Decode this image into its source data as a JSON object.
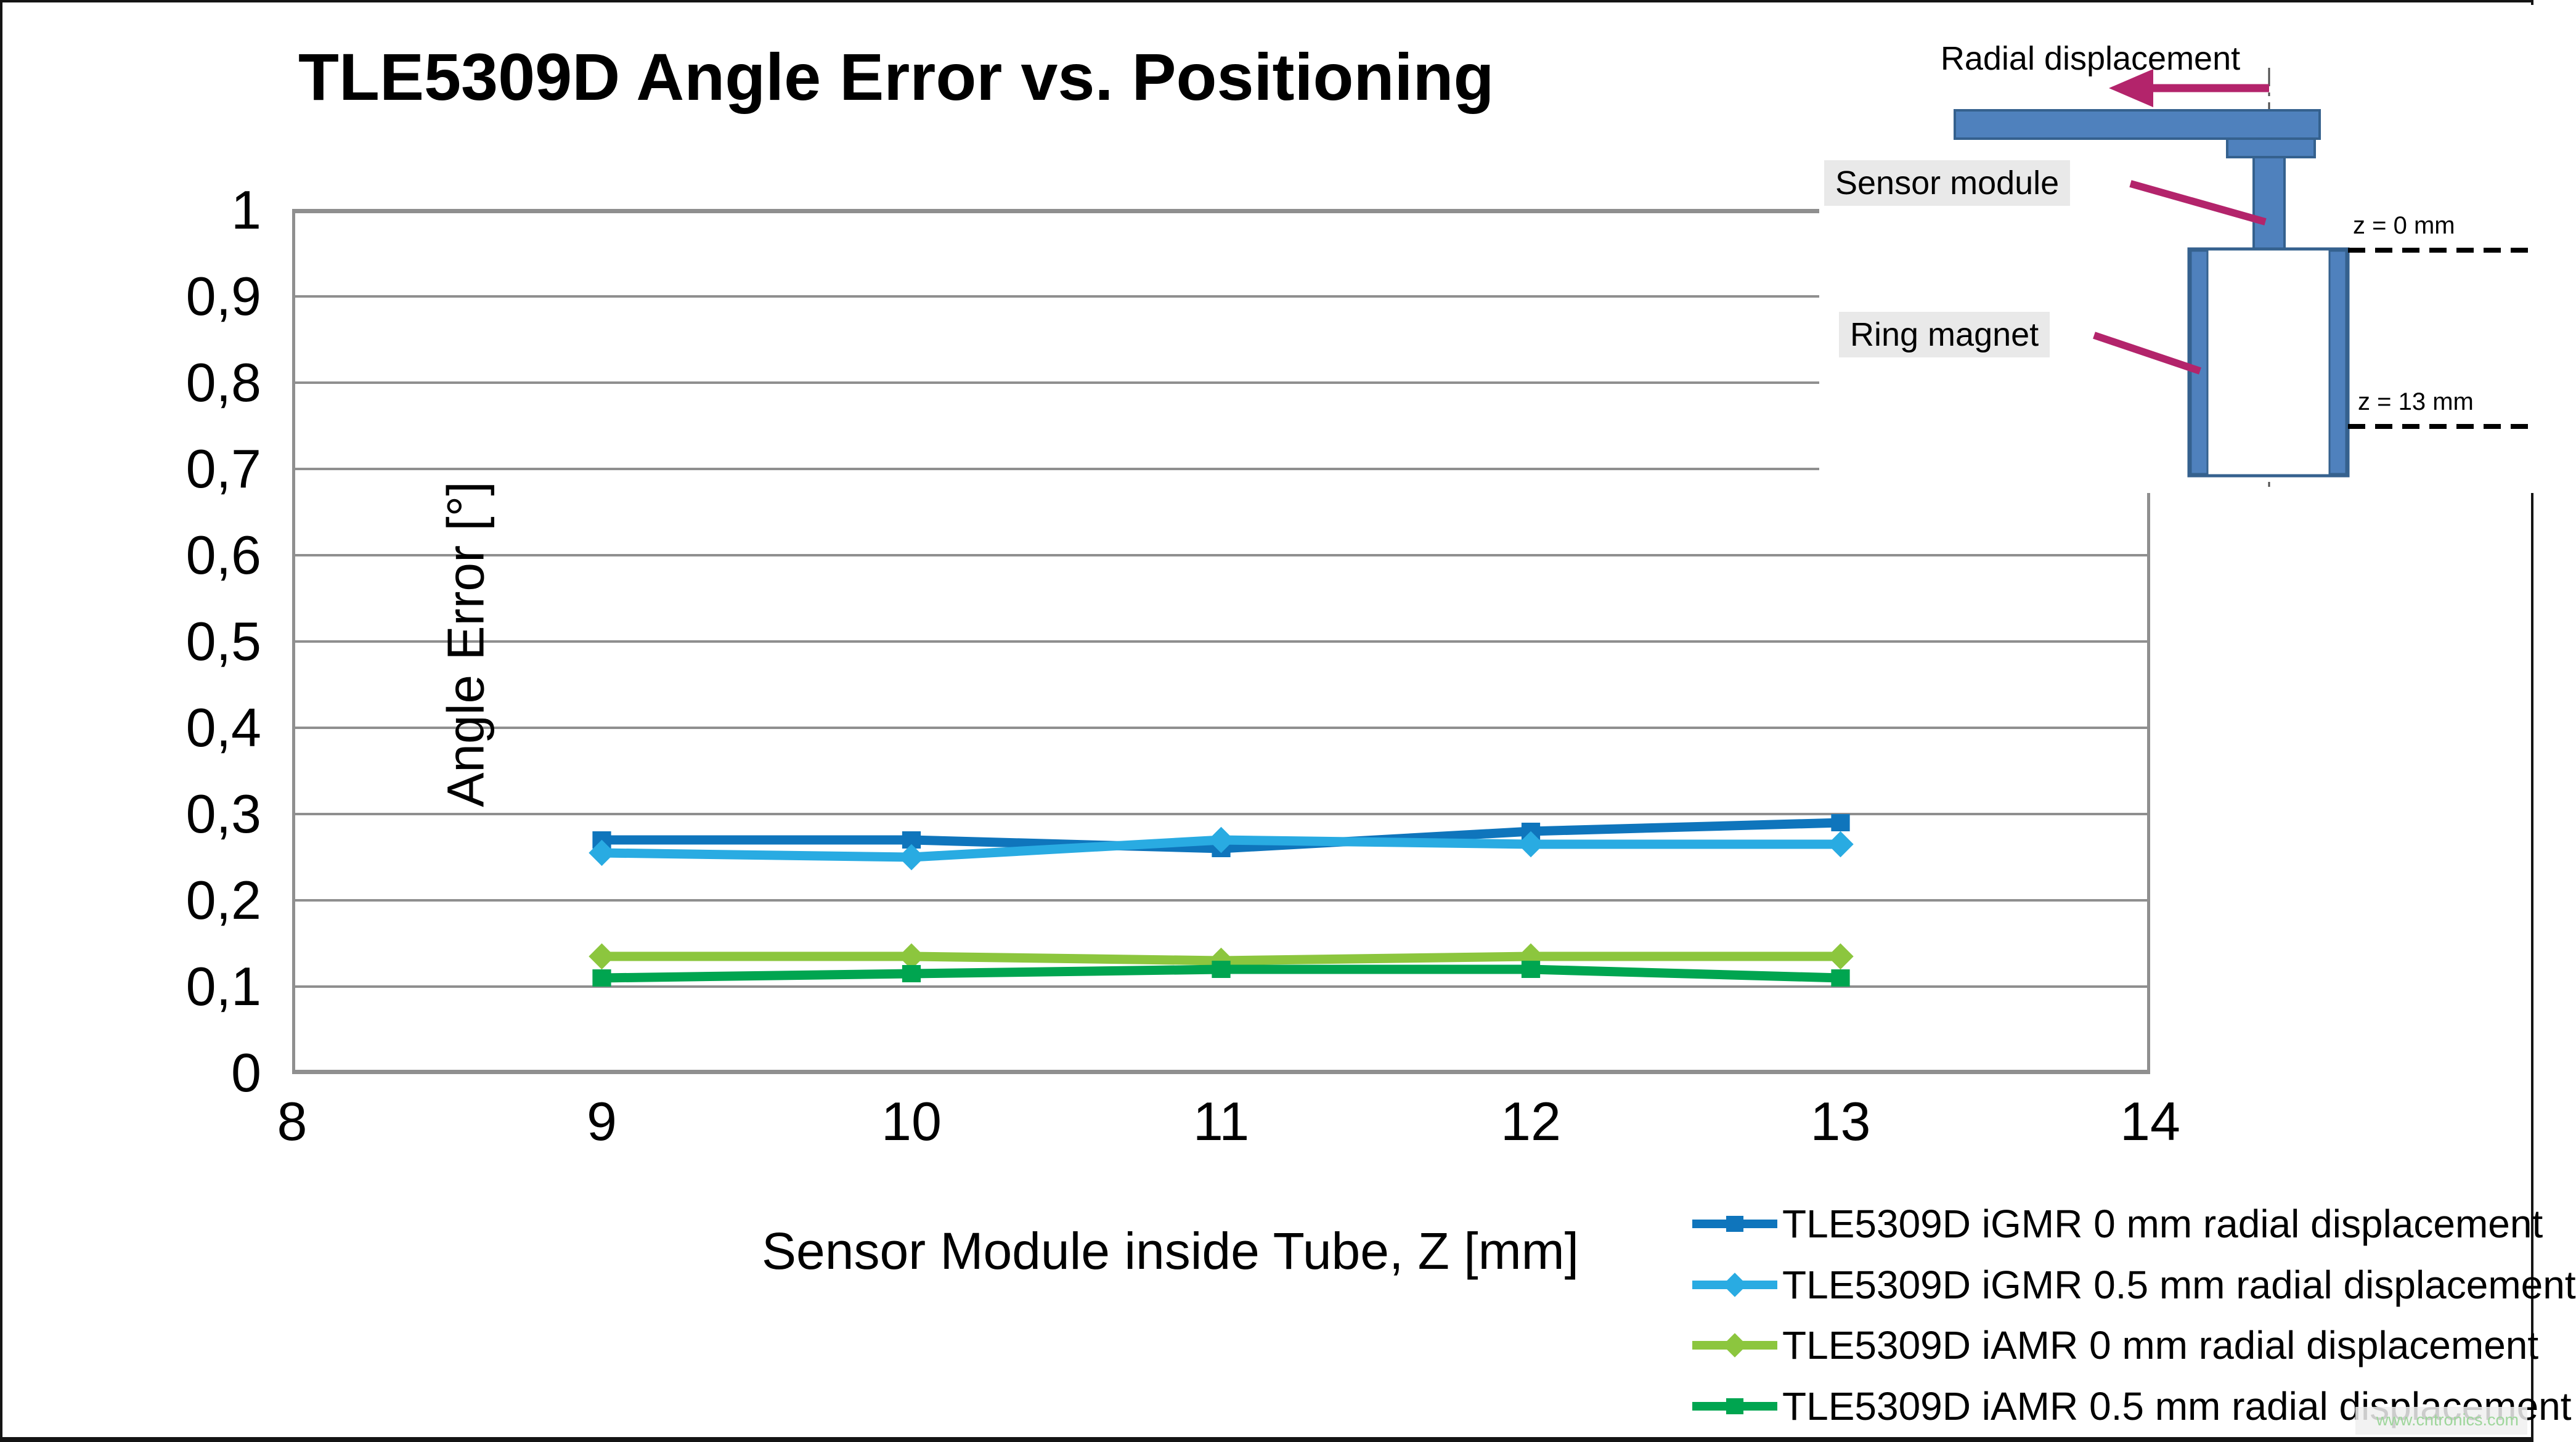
{
  "title": "TLE5309D Angle Error vs. Positioning",
  "watermark": "www.cntronics.com",
  "chart_data": {
    "type": "line",
    "title": "TLE5309D Angle Error vs. Positioning",
    "xlabel": "Sensor Module inside Tube, Z [mm]",
    "ylabel": "Angle Error [°]",
    "xlim": [
      8,
      14
    ],
    "ylim": [
      0,
      1
    ],
    "grid": "horizontal",
    "grid_color": "#8f8f8f",
    "legend_position": "bottom-right",
    "xtick_values": [
      8,
      9,
      10,
      11,
      12,
      13,
      14
    ],
    "xtick_labels": [
      "8",
      "9",
      "10",
      "11",
      "12",
      "13",
      "14"
    ],
    "ytick_values": [
      0,
      0.1,
      0.2,
      0.3,
      0.4,
      0.5,
      0.6,
      0.7,
      0.8,
      0.9,
      1
    ],
    "ytick_labels": [
      "0",
      "0,1",
      "0,2",
      "0,3",
      "0,4",
      "0,5",
      "0,6",
      "0,7",
      "0,8",
      "0,9",
      "1"
    ],
    "x": [
      9,
      10,
      11,
      12,
      13
    ],
    "series": [
      {
        "name": "TLE5309D iGMR 0 mm radial displacement",
        "color": "#0f75bc",
        "marker": "square",
        "values": [
          0.27,
          0.27,
          0.26,
          0.28,
          0.29
        ]
      },
      {
        "name": "TLE5309D iGMR 0.5 mm radial displacement",
        "color": "#29abe2",
        "marker": "diamond",
        "values": [
          0.255,
          0.25,
          0.27,
          0.265,
          0.265
        ]
      },
      {
        "name": "TLE5309D iAMR 0 mm radial displacement",
        "color": "#8cc63e",
        "marker": "diamond",
        "values": [
          0.135,
          0.135,
          0.13,
          0.135,
          0.135
        ]
      },
      {
        "name": "TLE5309D iAMR 0.5 mm radial displacement",
        "color": "#00a550",
        "marker": "square",
        "values": [
          0.11,
          0.115,
          0.12,
          0.12,
          0.11
        ]
      }
    ]
  },
  "diagram": {
    "radial_displacement_label": "Radial displacement",
    "sensor_module_label": "Sensor module",
    "ring_magnet_label": "Ring magnet",
    "z0_label": "z = 0 mm",
    "z13_label": "z = 13 mm",
    "shape_fill": "#4f81bd",
    "shape_border": "#35618e",
    "arrow_color": "#b3246b"
  }
}
